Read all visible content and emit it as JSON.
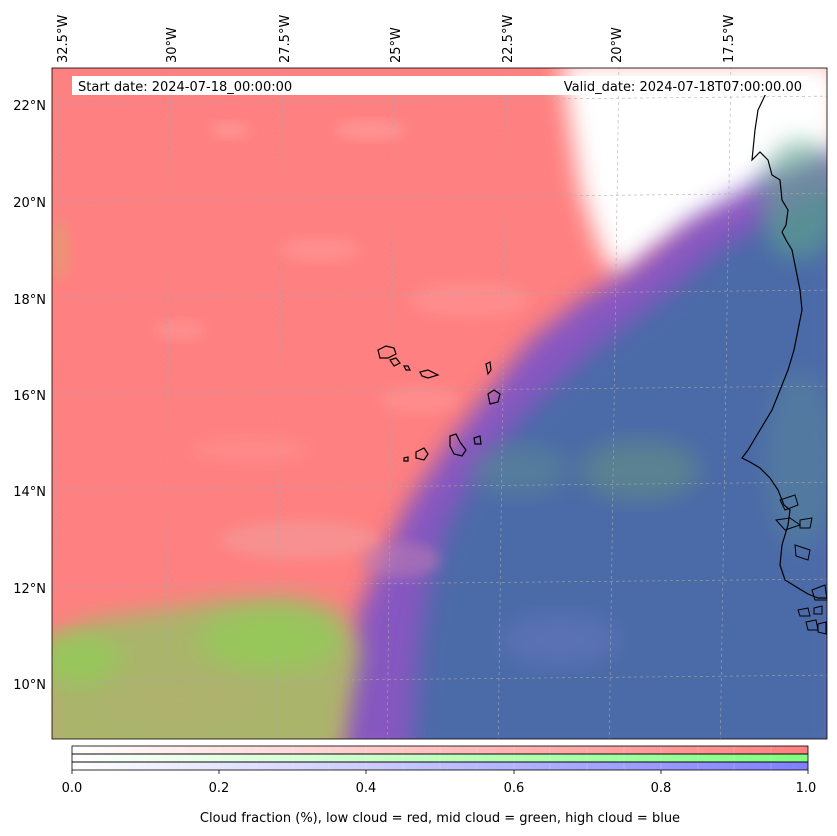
{
  "map": {
    "start_date": "Start date: 2024-07-18_00:00:00",
    "valid_date": "Valid_date: 2024-07-18T07:00:00.00",
    "lon_labels": [
      "32.5°W",
      "30°W",
      "27.5°W",
      "25°W",
      "22.5°W",
      "20°W",
      "17.5°W"
    ],
    "lat_labels": [
      "22°N",
      "20°N",
      "18°N",
      "16°N",
      "14°N",
      "12°N",
      "10°N"
    ]
  },
  "colorbar": {
    "ticks": [
      "0.0",
      "0.2",
      "0.4",
      "0.6",
      "0.8",
      "1.0"
    ],
    "title": "Cloud fraction (%), low cloud = red, mid cloud = green, high cloud = blue",
    "colors": {
      "low": "#ff7f7f",
      "mid": "#7fff7f",
      "high": "#7f7fff"
    }
  },
  "colors": {
    "low_cloud": "#ff8080",
    "mixed_high": "#4b6aa8",
    "mid_cloud": "#8fcf55",
    "clear": "#ffffff",
    "violet_band": "#7a52c8"
  }
}
